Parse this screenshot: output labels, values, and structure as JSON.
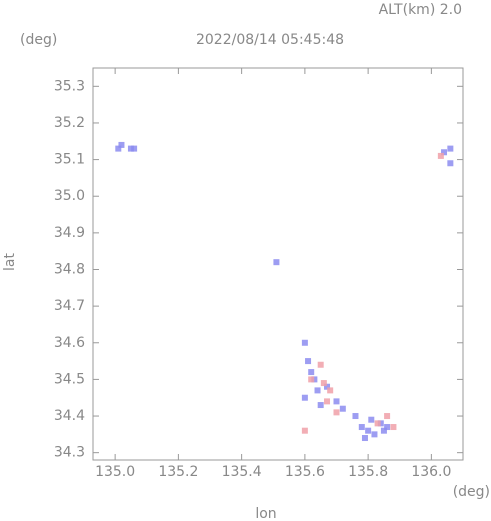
{
  "chart_data": {
    "type": "scatter",
    "title": "2022/08/14 05:45:48",
    "annotation": "ALT(km) 2.0",
    "x_unit": "(deg)",
    "y_unit": "(deg)",
    "xlabel": "lon",
    "ylabel": "lat",
    "xlim": [
      134.93,
      136.1
    ],
    "ylim": [
      34.28,
      35.35
    ],
    "xticks": [
      {
        "value": 135,
        "label": "135.0"
      },
      135.2,
      135.4,
      135.6,
      135.8,
      {
        "value": 136,
        "label": "136.0"
      }
    ],
    "yticks": [
      34.3,
      34.4,
      34.5,
      34.6,
      34.7,
      34.8,
      34.9,
      {
        "value": 35,
        "label": "35.0"
      },
      35.1,
      35.2,
      35.3
    ],
    "series": [
      {
        "color": "#8c8cf0",
        "x": [
          135.01,
          135.02,
          135.05,
          135.06,
          136.04,
          136.06,
          136.06,
          135.51,
          135.6,
          135.61,
          135.62,
          135.63,
          135.64,
          135.6,
          135.65,
          135.67,
          135.7,
          135.72,
          135.76,
          135.78,
          135.8,
          135.82,
          135.84,
          135.86,
          135.79,
          135.81,
          135.85
        ],
        "values": [
          35.13,
          35.14,
          35.13,
          35.13,
          35.12,
          35.13,
          35.09,
          34.82,
          34.6,
          34.55,
          34.52,
          34.5,
          34.47,
          34.45,
          34.43,
          34.48,
          34.44,
          34.42,
          34.4,
          34.37,
          34.36,
          34.35,
          34.38,
          34.37,
          34.34,
          34.39,
          34.36
        ]
      },
      {
        "color": "#f0a0a8",
        "x": [
          135.6,
          135.62,
          135.65,
          135.66,
          135.68,
          135.7,
          135.67,
          135.83,
          135.86,
          135.88,
          136.03
        ],
        "values": [
          34.36,
          34.5,
          34.54,
          34.49,
          34.47,
          34.41,
          34.44,
          34.38,
          34.4,
          34.37,
          35.11
        ]
      }
    ]
  }
}
